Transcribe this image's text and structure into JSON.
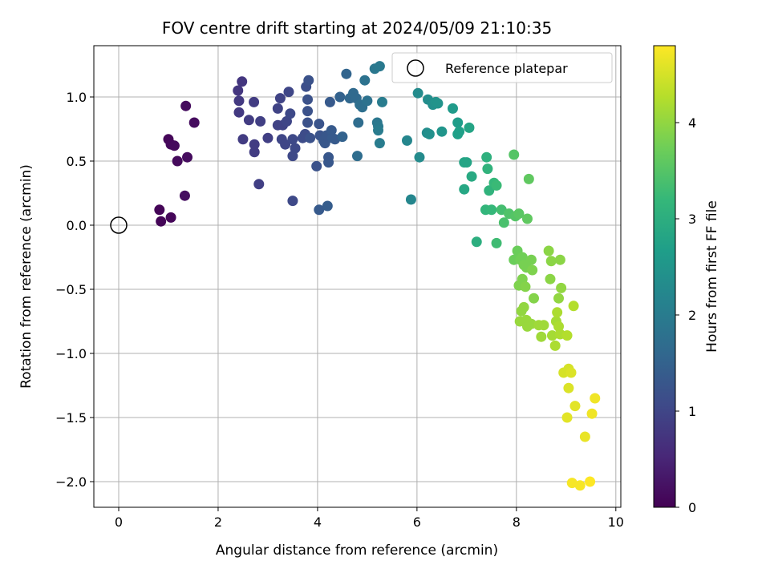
{
  "chart_data": {
    "type": "scatter",
    "title": "FOV centre drift starting at 2024/05/09 21:10:35",
    "xlabel": "Angular distance from reference (arcmin)",
    "ylabel": "Rotation from reference (arcmin)",
    "xlim": [
      -0.5,
      10.1
    ],
    "ylim": [
      -2.2,
      1.4
    ],
    "xticks": [
      0,
      2,
      4,
      6,
      8,
      10
    ],
    "yticks": [
      1.0,
      0.5,
      0.0,
      -0.5,
      -1.0,
      -1.5,
      -2.0
    ],
    "xtick_labels": [
      "0",
      "2",
      "4",
      "6",
      "8",
      "10"
    ],
    "ytick_labels": [
      "1.0",
      "0.5",
      "0.0",
      "−0.5",
      "−1.0",
      "−1.5",
      "−2.0"
    ],
    "grid": true,
    "legend": {
      "position": "top-right",
      "entries": [
        "Reference platepar"
      ]
    },
    "reference_point": {
      "x": 0,
      "y": 0,
      "label": "Reference platepar"
    },
    "colorbar": {
      "label": "Hours from first FF file",
      "colormap": "viridis",
      "range": [
        0,
        4.8
      ],
      "ticks": [
        0,
        1,
        2,
        3,
        4
      ],
      "tick_labels": [
        "0",
        "1",
        "2",
        "3",
        "4"
      ]
    },
    "color_stops": [
      "#440154",
      "#482878",
      "#3e4a89",
      "#31688e",
      "#26828e",
      "#1f9e89",
      "#35b779",
      "#6ece58",
      "#b5de2b",
      "#fde725"
    ],
    "points": [
      [
        0.82,
        0.12,
        0.05
      ],
      [
        0.85,
        0.03,
        0.05
      ],
      [
        1.05,
        0.06,
        0.08
      ],
      [
        1.0,
        0.67,
        0.08
      ],
      [
        1.05,
        0.63,
        0.1
      ],
      [
        1.12,
        0.62,
        0.12
      ],
      [
        1.18,
        0.5,
        0.12
      ],
      [
        1.35,
        0.93,
        0.15
      ],
      [
        1.38,
        0.53,
        0.15
      ],
      [
        1.52,
        0.8,
        0.15
      ],
      [
        1.33,
        0.23,
        0.18
      ],
      [
        2.4,
        1.05,
        0.75
      ],
      [
        2.48,
        1.12,
        0.75
      ],
      [
        2.42,
        0.97,
        0.8
      ],
      [
        2.42,
        0.88,
        0.8
      ],
      [
        2.5,
        0.67,
        0.85
      ],
      [
        2.62,
        0.82,
        0.85
      ],
      [
        2.72,
        0.96,
        0.85
      ],
      [
        2.73,
        0.63,
        0.85
      ],
      [
        2.73,
        0.57,
        0.85
      ],
      [
        2.85,
        0.81,
        0.9
      ],
      [
        2.82,
        0.32,
        0.9
      ],
      [
        3.0,
        0.68,
        0.9
      ],
      [
        3.2,
        0.91,
        0.95
      ],
      [
        3.25,
        0.99,
        0.95
      ],
      [
        3.2,
        0.78,
        0.95
      ],
      [
        3.3,
        0.78,
        0.95
      ],
      [
        3.28,
        0.67,
        1.0
      ],
      [
        3.35,
        0.63,
        1.0
      ],
      [
        3.38,
        0.81,
        1.0
      ],
      [
        3.42,
        1.04,
        1.0
      ],
      [
        3.45,
        0.87,
        1.05
      ],
      [
        3.5,
        0.67,
        1.05
      ],
      [
        3.5,
        0.54,
        1.05
      ],
      [
        3.55,
        0.6,
        1.05
      ],
      [
        3.5,
        0.19,
        1.05
      ],
      [
        3.7,
        0.68,
        1.1
      ],
      [
        3.75,
        0.71,
        1.1
      ],
      [
        3.77,
        1.08,
        1.15
      ],
      [
        3.82,
        1.13,
        1.2
      ],
      [
        3.8,
        0.98,
        1.2
      ],
      [
        3.8,
        0.89,
        1.2
      ],
      [
        3.8,
        0.8,
        1.2
      ],
      [
        3.85,
        0.68,
        1.2
      ],
      [
        3.98,
        0.46,
        1.2
      ],
      [
        4.03,
        0.79,
        1.25
      ],
      [
        4.05,
        0.7,
        1.25
      ],
      [
        4.12,
        0.66,
        1.3
      ],
      [
        4.15,
        0.64,
        1.3
      ],
      [
        4.18,
        0.7,
        1.3
      ],
      [
        4.22,
        0.53,
        1.3
      ],
      [
        4.22,
        0.49,
        1.3
      ],
      [
        4.28,
        0.74,
        1.35
      ],
      [
        4.3,
        0.68,
        1.35
      ],
      [
        4.35,
        0.67,
        1.35
      ],
      [
        4.25,
        0.96,
        1.35
      ],
      [
        4.03,
        0.12,
        1.35
      ],
      [
        4.2,
        0.15,
        1.4
      ],
      [
        4.45,
        1.0,
        1.5
      ],
      [
        4.5,
        0.69,
        1.5
      ],
      [
        4.58,
        1.18,
        1.55
      ],
      [
        4.65,
        0.99,
        1.6
      ],
      [
        4.72,
        1.03,
        1.65
      ],
      [
        4.78,
        0.99,
        1.65
      ],
      [
        4.8,
        0.54,
        1.7
      ],
      [
        4.82,
        0.8,
        1.7
      ],
      [
        4.85,
        0.94,
        1.75
      ],
      [
        4.9,
        0.92,
        1.75
      ],
      [
        4.95,
        1.13,
        1.8
      ],
      [
        5.0,
        0.97,
        1.8
      ],
      [
        5.15,
        1.22,
        1.9
      ],
      [
        5.2,
        0.8,
        1.9
      ],
      [
        5.22,
        0.77,
        1.95
      ],
      [
        5.25,
        1.24,
        1.95
      ],
      [
        5.25,
        0.64,
        2.0
      ],
      [
        5.3,
        0.96,
        2.0
      ],
      [
        5.22,
        0.74,
        2.0
      ],
      [
        5.8,
        0.66,
        2.2
      ],
      [
        5.88,
        0.2,
        2.2
      ],
      [
        6.02,
        1.03,
        2.3
      ],
      [
        6.05,
        0.53,
        2.3
      ],
      [
        6.2,
        0.72,
        2.35
      ],
      [
        6.22,
        0.98,
        2.35
      ],
      [
        6.25,
        0.71,
        2.4
      ],
      [
        6.32,
        0.94,
        2.4
      ],
      [
        6.38,
        0.96,
        2.45
      ],
      [
        6.42,
        0.95,
        2.45
      ],
      [
        6.5,
        0.73,
        2.5
      ],
      [
        6.72,
        0.91,
        2.6
      ],
      [
        6.82,
        0.8,
        2.65
      ],
      [
        6.82,
        0.71,
        2.7
      ],
      [
        6.85,
        0.73,
        2.7
      ],
      [
        6.95,
        0.49,
        2.8
      ],
      [
        7.0,
        0.49,
        2.8
      ],
      [
        7.05,
        0.76,
        2.8
      ],
      [
        6.95,
        0.28,
        2.85
      ],
      [
        7.1,
        0.38,
        2.9
      ],
      [
        7.2,
        -0.13,
        3.0
      ],
      [
        7.4,
        0.53,
        3.05
      ],
      [
        7.42,
        0.44,
        3.1
      ],
      [
        7.45,
        0.27,
        3.1
      ],
      [
        7.38,
        0.12,
        3.15
      ],
      [
        7.5,
        0.12,
        3.2
      ],
      [
        7.55,
        0.33,
        3.2
      ],
      [
        7.6,
        0.31,
        3.25
      ],
      [
        7.6,
        -0.14,
        3.3
      ],
      [
        7.7,
        0.12,
        3.35
      ],
      [
        7.75,
        0.02,
        3.4
      ],
      [
        7.85,
        0.09,
        3.45
      ],
      [
        7.95,
        0.55,
        3.5
      ],
      [
        7.98,
        0.07,
        3.5
      ],
      [
        8.05,
        0.09,
        3.55
      ],
      [
        8.25,
        0.36,
        3.6
      ],
      [
        8.22,
        0.05,
        3.6
      ],
      [
        7.95,
        -0.27,
        3.7
      ],
      [
        8.02,
        -0.2,
        3.7
      ],
      [
        8.08,
        -0.27,
        3.75
      ],
      [
        8.12,
        -0.25,
        3.75
      ],
      [
        8.15,
        -0.31,
        3.8
      ],
      [
        8.2,
        -0.33,
        3.8
      ],
      [
        8.3,
        -0.27,
        3.8
      ],
      [
        8.32,
        -0.35,
        3.85
      ],
      [
        8.05,
        -0.47,
        3.85
      ],
      [
        8.12,
        -0.42,
        3.85
      ],
      [
        8.18,
        -0.48,
        3.9
      ],
      [
        8.35,
        -0.57,
        3.9
      ],
      [
        8.65,
        -0.2,
        3.95
      ],
      [
        8.7,
        -0.28,
        3.95
      ],
      [
        8.68,
        -0.42,
        3.95
      ],
      [
        8.88,
        -0.27,
        3.95
      ],
      [
        8.9,
        -0.49,
        4.0
      ],
      [
        8.85,
        -0.57,
        4.0
      ],
      [
        8.1,
        -0.67,
        4.0
      ],
      [
        8.15,
        -0.64,
        4.0
      ],
      [
        8.07,
        -0.75,
        4.05
      ],
      [
        8.2,
        -0.74,
        4.05
      ],
      [
        8.22,
        -0.79,
        4.05
      ],
      [
        8.3,
        -0.77,
        4.05
      ],
      [
        8.45,
        -0.78,
        4.1
      ],
      [
        8.5,
        -0.87,
        4.1
      ],
      [
        8.55,
        -0.78,
        4.1
      ],
      [
        8.72,
        -0.86,
        4.15
      ],
      [
        8.8,
        -0.75,
        4.15
      ],
      [
        8.82,
        -0.68,
        4.2
      ],
      [
        8.85,
        -0.79,
        4.2
      ],
      [
        8.78,
        -0.94,
        4.2
      ],
      [
        8.88,
        -0.85,
        4.2
      ],
      [
        9.02,
        -0.86,
        4.25
      ],
      [
        9.15,
        -0.63,
        4.25
      ],
      [
        8.95,
        -1.15,
        4.5
      ],
      [
        9.05,
        -1.12,
        4.5
      ],
      [
        9.1,
        -1.15,
        4.55
      ],
      [
        9.05,
        -1.27,
        4.55
      ],
      [
        9.02,
        -1.5,
        4.6
      ],
      [
        9.18,
        -1.41,
        4.6
      ],
      [
        9.38,
        -1.65,
        4.65
      ],
      [
        9.52,
        -1.47,
        4.7
      ],
      [
        9.58,
        -1.35,
        4.7
      ],
      [
        9.12,
        -2.01,
        4.75
      ],
      [
        9.28,
        -2.03,
        4.75
      ],
      [
        9.48,
        -2.0,
        4.8
      ]
    ]
  }
}
